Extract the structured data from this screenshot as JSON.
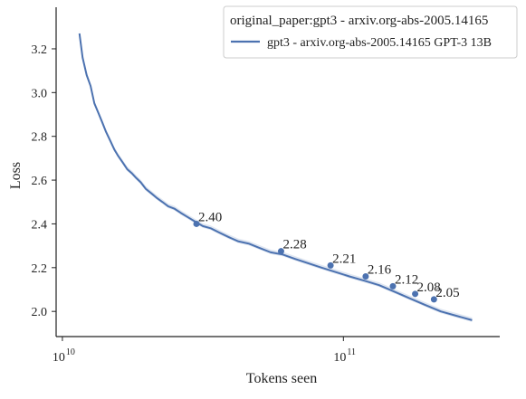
{
  "chart_data": {
    "type": "line",
    "title": "",
    "xlabel": "Tokens seen",
    "ylabel": "Loss",
    "xscale": "log",
    "xlim": [
      9500000000,
      360000000000
    ],
    "ylim": [
      1.885,
      3.39
    ],
    "x_ticks": [
      10000000000,
      100000000000
    ],
    "x_tick_labels": [
      "10",
      "10"
    ],
    "x_tick_exponents": [
      "10",
      "11"
    ],
    "y_ticks": [
      2.0,
      2.2,
      2.4,
      2.6,
      2.8,
      3.0,
      3.2
    ],
    "y_tick_labels": [
      "2.0",
      "2.2",
      "2.4",
      "2.6",
      "2.8",
      "3.0",
      "3.2"
    ],
    "grid": false,
    "legend": {
      "placement": "top-right",
      "title": "original_paper:gpt3 - arxiv.org-abs-2005.14165",
      "entries": [
        "gpt3 - arxiv.org-abs-2005.14165 GPT-3 13B"
      ]
    },
    "series": [
      {
        "name": "gpt3 - arxiv.org-abs-2005.14165 GPT-3 13B",
        "color": "#4c72b0",
        "x": [
          11500000000,
          11800000000,
          12200000000,
          12600000000,
          13000000000,
          13400000000,
          13900000000,
          14300000000,
          14800000000,
          15300000000,
          15800000000,
          16400000000,
          17000000000,
          17700000000,
          18300000000,
          19000000000,
          19800000000,
          20700000000,
          21600000000,
          22700000000,
          23800000000,
          25000000000,
          26400000000,
          28000000000,
          29700000000,
          31600000000,
          33700000000,
          36200000000,
          39000000000,
          42300000000,
          46000000000,
          50300000000,
          55100000000,
          60800000000,
          67300000000,
          74900000000,
          83600000000,
          93800000000,
          105000000000,
          119000000000,
          134000000000,
          152000000000,
          172000000000,
          195000000000,
          222000000000,
          252000000000,
          287000000000
        ],
        "y": [
          3.27,
          3.16,
          3.08,
          3.03,
          2.95,
          2.91,
          2.86,
          2.82,
          2.78,
          2.74,
          2.71,
          2.68,
          2.65,
          2.63,
          2.61,
          2.59,
          2.56,
          2.54,
          2.52,
          2.5,
          2.48,
          2.47,
          2.45,
          2.43,
          2.41,
          2.39,
          2.38,
          2.36,
          2.34,
          2.32,
          2.31,
          2.29,
          2.27,
          2.26,
          2.24,
          2.22,
          2.2,
          2.18,
          2.16,
          2.14,
          2.12,
          2.09,
          2.06,
          2.03,
          2.0,
          1.98,
          1.96
        ]
      }
    ],
    "annotations": [
      {
        "x": 30000000000,
        "y": 2.4,
        "label": "2.40"
      },
      {
        "x": 60000000000,
        "y": 2.275,
        "label": "2.28"
      },
      {
        "x": 90000000000,
        "y": 2.21,
        "label": "2.21"
      },
      {
        "x": 120000000000,
        "y": 2.16,
        "label": "2.16"
      },
      {
        "x": 150000000000,
        "y": 2.115,
        "label": "2.12"
      },
      {
        "x": 180000000000,
        "y": 2.08,
        "label": "2.08"
      },
      {
        "x": 210000000000,
        "y": 2.055,
        "label": "2.05"
      }
    ]
  }
}
